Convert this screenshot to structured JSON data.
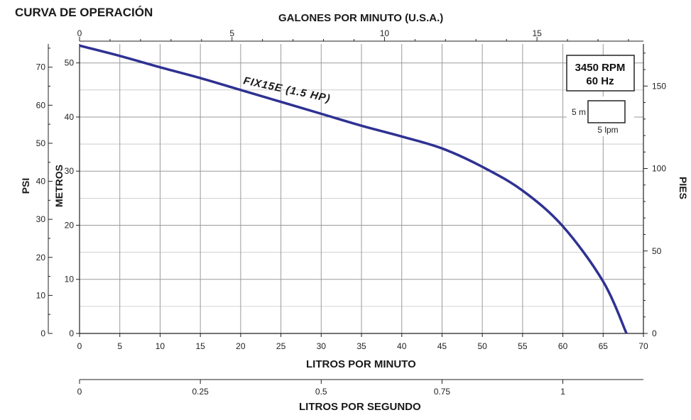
{
  "chart_data": {
    "type": "line",
    "title": "CURVA DE OPERACIÓN",
    "speed_box": {
      "rpm": "3450 RPM",
      "hz": "60 Hz"
    },
    "scale_box": {
      "vertical": "5 m",
      "horizontal": "5 lpm"
    },
    "axes": {
      "x_bottom": {
        "label": "LITROS POR MINUTO",
        "range": [
          0,
          70
        ],
        "ticks": [
          "0",
          "5",
          "10",
          "15",
          "20",
          "25",
          "30",
          "35",
          "40",
          "45",
          "50",
          "55",
          "60",
          "65",
          "70"
        ]
      },
      "x_top": {
        "label": "GALONES POR MINUTO (U.S.A.)",
        "range": [
          0,
          18.49
        ],
        "ticks": [
          "0",
          "5",
          "10",
          "15"
        ]
      },
      "x_lps": {
        "label": "LITROS POR SEGUNDO",
        "range": [
          0,
          1.1667
        ],
        "ticks": [
          "0",
          "0.25",
          "0.5",
          "0.75",
          "1"
        ]
      },
      "y_metros": {
        "label": "METROS",
        "range": [
          0,
          53.5
        ],
        "ticks": [
          "0",
          "10",
          "20",
          "30",
          "40",
          "50"
        ]
      },
      "y_psi": {
        "label": "PSI",
        "range": [
          0,
          76.1
        ],
        "ticks": [
          "0",
          "10",
          "20",
          "30",
          "40",
          "50",
          "60",
          "70"
        ]
      },
      "y_pies": {
        "label": "PIES",
        "range": [
          0,
          175.5
        ],
        "ticks": [
          "0",
          "50",
          "100",
          "150"
        ]
      }
    },
    "grid": true,
    "series": [
      {
        "name": "FIX15E (1.5 HP)",
        "color": "#2e3192",
        "x": [
          0,
          5,
          10,
          15,
          20,
          25,
          30,
          35,
          40,
          45,
          50,
          55,
          60,
          65,
          67.9
        ],
        "y": [
          53.2,
          51.3,
          49.2,
          47.2,
          45.0,
          42.8,
          40.6,
          38.4,
          36.4,
          34.2,
          30.8,
          26.4,
          19.8,
          9.6,
          0
        ]
      }
    ]
  }
}
